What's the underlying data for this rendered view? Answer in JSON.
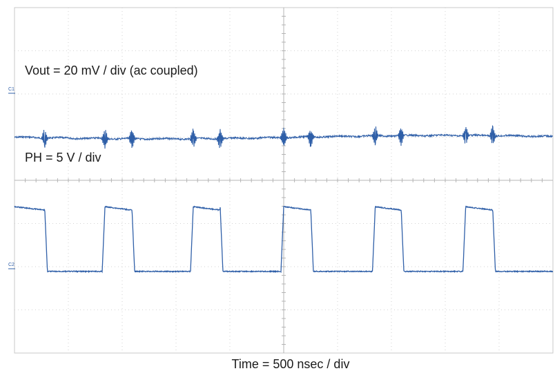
{
  "chart_data": {
    "type": "line",
    "title": "",
    "xlabel": "Time = 500 nsec / div",
    "ylabel": "",
    "grid": true,
    "x_divisions": 10,
    "y_divisions": 8,
    "trace_color": "#2f5fa8",
    "annotations": [
      "Vout = 20 mV / div (ac coupled)",
      "PH = 5 V / div"
    ],
    "channel_markers": [
      "C1",
      "C2"
    ],
    "series": [
      {
        "name": "Vout = 20 mV / div (ac coupled)",
        "channel": "C1",
        "units_per_div": "20 mV",
        "baseline_div": 5.0,
        "switch_times_div": [
          0.56,
          1.68,
          2.18,
          3.32,
          3.82,
          5.0,
          5.5,
          6.7,
          7.18,
          8.38,
          8.88
        ],
        "spike_amplitude_div": 0.25
      },
      {
        "name": "PH = 5 V / div",
        "channel": "C2",
        "units_per_div": "5 V",
        "high_div": 3.1,
        "low_div": 0.05,
        "ground_div": 0,
        "high_intervals_div": [
          [
            0,
            0.56
          ],
          [
            1.68,
            2.18
          ],
          [
            3.32,
            3.82
          ],
          [
            5.0,
            5.5
          ],
          [
            6.7,
            7.18
          ],
          [
            8.38,
            8.88
          ]
        ]
      }
    ]
  }
}
